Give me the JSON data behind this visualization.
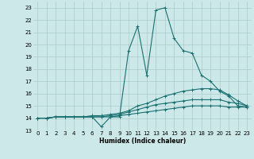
{
  "xlabel": "Humidex (Indice chaleur)",
  "bg_color": "#cce8e8",
  "grid_color": "#aacccc",
  "line_color": "#1a7070",
  "xlim": [
    -0.5,
    23.5
  ],
  "ylim": [
    13.0,
    23.5
  ],
  "yticks": [
    13,
    14,
    15,
    16,
    17,
    18,
    19,
    20,
    21,
    22,
    23
  ],
  "xticks": [
    0,
    1,
    2,
    3,
    4,
    5,
    6,
    7,
    8,
    9,
    10,
    11,
    12,
    13,
    14,
    15,
    16,
    17,
    18,
    19,
    20,
    21,
    22,
    23
  ],
  "series": [
    [
      14.0,
      14.0,
      14.1,
      14.1,
      14.1,
      14.1,
      14.1,
      13.3,
      14.1,
      14.1,
      19.5,
      21.5,
      17.5,
      22.8,
      23.0,
      20.5,
      19.5,
      19.3,
      17.5,
      17.0,
      16.2,
      15.8,
      15.0,
      14.9
    ],
    [
      14.0,
      14.0,
      14.1,
      14.1,
      14.1,
      14.1,
      14.2,
      14.2,
      14.3,
      14.4,
      14.6,
      15.0,
      15.2,
      15.5,
      15.8,
      16.0,
      16.2,
      16.3,
      16.4,
      16.4,
      16.3,
      15.9,
      15.4,
      15.0
    ],
    [
      14.0,
      14.0,
      14.1,
      14.1,
      14.1,
      14.1,
      14.1,
      14.1,
      14.2,
      14.3,
      14.5,
      14.7,
      14.9,
      15.1,
      15.2,
      15.3,
      15.4,
      15.5,
      15.5,
      15.5,
      15.5,
      15.3,
      15.2,
      15.0
    ],
    [
      14.0,
      14.0,
      14.1,
      14.1,
      14.1,
      14.1,
      14.1,
      14.1,
      14.1,
      14.2,
      14.3,
      14.4,
      14.5,
      14.6,
      14.7,
      14.8,
      14.9,
      15.0,
      15.0,
      15.0,
      15.0,
      14.9,
      14.9,
      14.9
    ]
  ]
}
